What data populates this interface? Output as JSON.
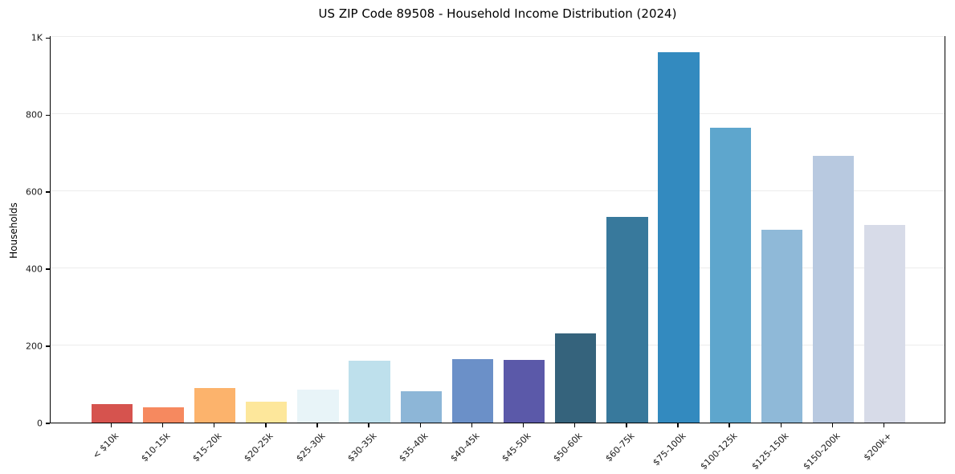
{
  "chart_data": {
    "type": "bar",
    "title": "US ZIP Code 89508 - Household Income Distribution (2024)",
    "xlabel": "",
    "ylabel": "Households",
    "categories": [
      "< $10k",
      "$10-15k",
      "$15-20k",
      "$20-25k",
      "$25-30k",
      "$30-35k",
      "$35-40k",
      "$40-45k",
      "$45-50k",
      "$50-60k",
      "$60-75k",
      "$75-100k",
      "$100-125k",
      "$125-150k",
      "$150-200k",
      "$200k+"
    ],
    "values": [
      48,
      40,
      90,
      55,
      85,
      160,
      81,
      165,
      162,
      231,
      533,
      962,
      765,
      500,
      692,
      512
    ],
    "bar_colors": [
      "#d6534e",
      "#f6895f",
      "#fcb36c",
      "#fde79b",
      "#e8f4f8",
      "#bee0ec",
      "#8db6d7",
      "#6b90c8",
      "#5b59a9",
      "#35637c",
      "#38799c",
      "#338abf",
      "#5ea6cd",
      "#8fb9d8",
      "#b8c9e0",
      "#d7dbe8"
    ],
    "y_tick_labels": [
      "0",
      "200",
      "400",
      "600",
      "800",
      "1K"
    ],
    "y_tick_values": [
      0,
      200,
      400,
      600,
      800,
      1000
    ],
    "ylim": [
      0,
      1005
    ],
    "grid": "horizontal",
    "gridline_color": "#ececec",
    "spine_color": "#000000",
    "background_color": "#ffffff",
    "legend": "none"
  }
}
